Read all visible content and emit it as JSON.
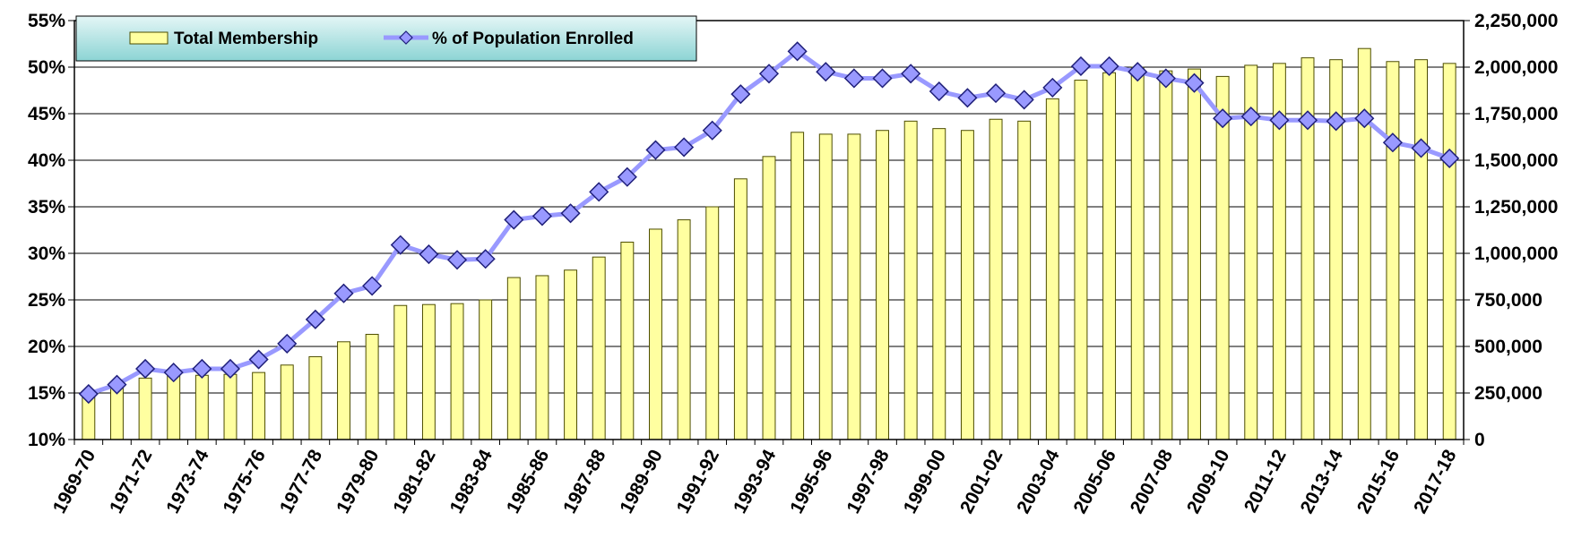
{
  "chart_data": {
    "type": "bar",
    "title": "",
    "xlabel": "",
    "ylabel": "",
    "legend_position": "top-left",
    "grid": true,
    "colors": {
      "bar_fill": "#FFFFA0",
      "bar_stroke": "#4D4D00",
      "line": "#9999FF",
      "marker_fill": "#9999FF",
      "marker_stroke": "#1F1F7A",
      "legend_bg_top": "#E4F6F6",
      "legend_bg_bottom": "#8CD4D4"
    },
    "categories": [
      "1969-70",
      "1970-71",
      "1971-72",
      "1972-73",
      "1973-74",
      "1974-75",
      "1975-76",
      "1976-77",
      "1977-78",
      "1978-79",
      "1979-80",
      "1980-81",
      "1981-82",
      "1982-83",
      "1983-84",
      "1984-85",
      "1985-86",
      "1986-87",
      "1987-88",
      "1988-89",
      "1989-90",
      "1990-91",
      "1991-92",
      "1992-93",
      "1993-94",
      "1994-95",
      "1995-96",
      "1996-97",
      "1997-98",
      "1998-99",
      "1999-00",
      "2000-01",
      "2001-02",
      "2002-03",
      "2003-04",
      "2004-05",
      "2005-06",
      "2006-07",
      "2007-08",
      "2008-09",
      "2009-10",
      "2010-11",
      "2011-12",
      "2012-13",
      "2013-14",
      "2014-15",
      "2015-16",
      "2016-17",
      "2017-18"
    ],
    "x_tick_labels": [
      "1969-70",
      "1971-72",
      "1973-74",
      "1975-76",
      "1977-78",
      "1979-80",
      "1981-82",
      "1983-84",
      "1985-86",
      "1987-88",
      "1989-90",
      "1991-92",
      "1993-94",
      "1995-96",
      "1997-98",
      "1999-00",
      "2001-02",
      "2003-04",
      "2005-06",
      "2007-08",
      "2009-10",
      "2011-12",
      "2013-14",
      "2015-16",
      "2017-18"
    ],
    "y_left": {
      "min": 10,
      "max": 55,
      "step": 5,
      "tick_labels": [
        "10%",
        "15%",
        "20%",
        "25%",
        "30%",
        "35%",
        "40%",
        "45%",
        "50%",
        "55%"
      ]
    },
    "y_right": {
      "min": 0,
      "max": 2250000,
      "step": 250000,
      "tick_labels": [
        "0",
        "250,000",
        "500,000",
        "750,000",
        "1,000,000",
        "1,250,000",
        "1,500,000",
        "1,750,000",
        "2,000,000",
        "2,250,000"
      ]
    },
    "series": [
      {
        "name": "Total Membership",
        "kind": "bar",
        "axis": "right",
        "values": [
          260000,
          300000,
          330000,
          345000,
          345000,
          350000,
          360000,
          400000,
          445000,
          525000,
          565000,
          720000,
          725000,
          730000,
          750000,
          870000,
          880000,
          910000,
          980000,
          1060000,
          1130000,
          1180000,
          1250000,
          1400000,
          1520000,
          1650000,
          1640000,
          1640000,
          1660000,
          1710000,
          1670000,
          1660000,
          1720000,
          1710000,
          1830000,
          1930000,
          1970000,
          2000000,
          1980000,
          1990000,
          1950000,
          2010000,
          2020000,
          2050000,
          2040000,
          2100000,
          2030000,
          2040000,
          2020000
        ]
      },
      {
        "name": "% of Population Enrolled",
        "kind": "line",
        "axis": "left",
        "values": [
          14.9,
          15.9,
          17.6,
          17.2,
          17.6,
          17.6,
          18.6,
          20.3,
          22.9,
          25.7,
          26.5,
          30.9,
          29.9,
          29.3,
          29.4,
          33.6,
          34.0,
          34.3,
          36.6,
          38.2,
          41.1,
          41.4,
          43.2,
          47.1,
          49.3,
          51.7,
          49.5,
          48.8,
          48.8,
          49.3,
          47.4,
          46.7,
          47.2,
          46.5,
          47.8,
          50.1,
          50.1,
          49.5,
          48.8,
          48.3,
          44.5,
          44.7,
          44.3,
          44.3,
          44.2,
          44.5,
          41.9,
          41.3,
          40.2
        ]
      }
    ]
  }
}
